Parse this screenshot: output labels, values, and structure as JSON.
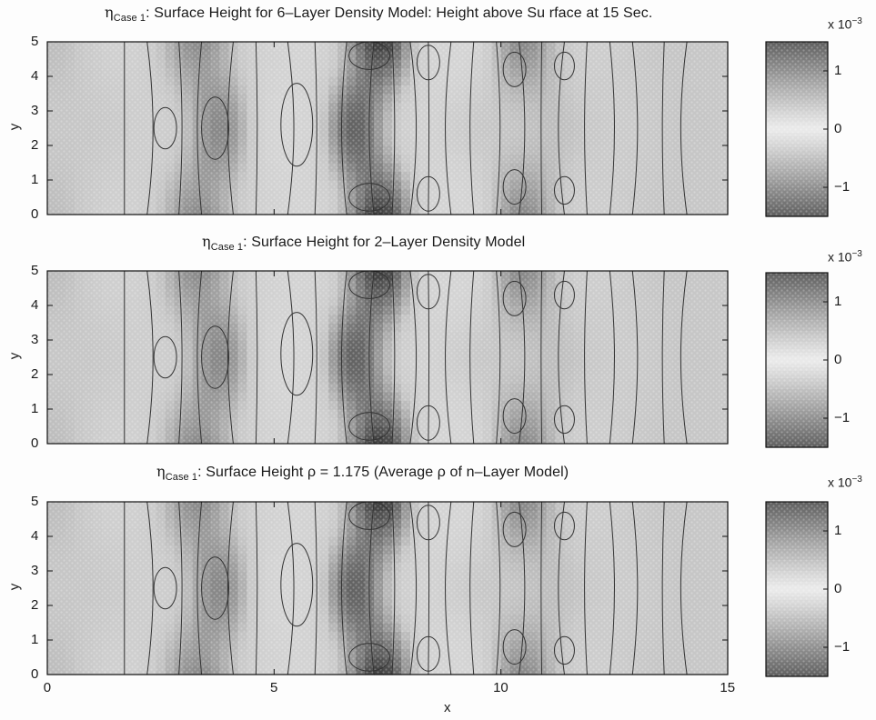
{
  "chart_data": [
    {
      "type": "heatmap",
      "title_symbol": "η",
      "title_subscript": "Case 1",
      "title_rest": ": Surface Height for 6–Layer Density Model: Height above Su rface at 15 Sec.",
      "ylabel": "y",
      "xlim": [
        0,
        15
      ],
      "ylim": [
        0,
        5
      ],
      "yticks": [
        "0",
        "1",
        "2",
        "3",
        "4",
        "5"
      ],
      "colorbar": {
        "multiplier_base": "x 10",
        "multiplier_exp": "−3",
        "ticks": [
          "−1",
          "0",
          "1"
        ],
        "range": [
          -1.5,
          1.5
        ]
      },
      "grid": false
    },
    {
      "type": "heatmap",
      "title_symbol": "η",
      "title_subscript": "Case 1",
      "title_rest": ": Surface Height for 2–Layer Density Model",
      "ylabel": "y",
      "xlim": [
        0,
        15
      ],
      "ylim": [
        0,
        5
      ],
      "yticks": [
        "0",
        "1",
        "2",
        "3",
        "4",
        "5"
      ],
      "colorbar": {
        "multiplier_base": "x 10",
        "multiplier_exp": "−3",
        "ticks": [
          "−1",
          "0",
          "1"
        ],
        "range": [
          -1.5,
          1.5
        ]
      },
      "grid": false
    },
    {
      "type": "heatmap",
      "title_symbol": "η",
      "title_subscript": "Case 1",
      "title_rest": ": Surface Height ρ = 1.175 (Average ρ of n–Layer Model)",
      "ylabel": "y",
      "xlabel": "x",
      "xlim": [
        0,
        15
      ],
      "ylim": [
        0,
        5
      ],
      "xticks": [
        "0",
        "5",
        "10",
        "15"
      ],
      "yticks": [
        "0",
        "1",
        "2",
        "3",
        "4",
        "5"
      ],
      "colorbar": {
        "multiplier_base": "x 10",
        "multiplier_exp": "−3",
        "ticks": [
          "−1",
          "0",
          "1"
        ],
        "range": [
          -1.5,
          1.5
        ]
      },
      "grid": false
    }
  ]
}
